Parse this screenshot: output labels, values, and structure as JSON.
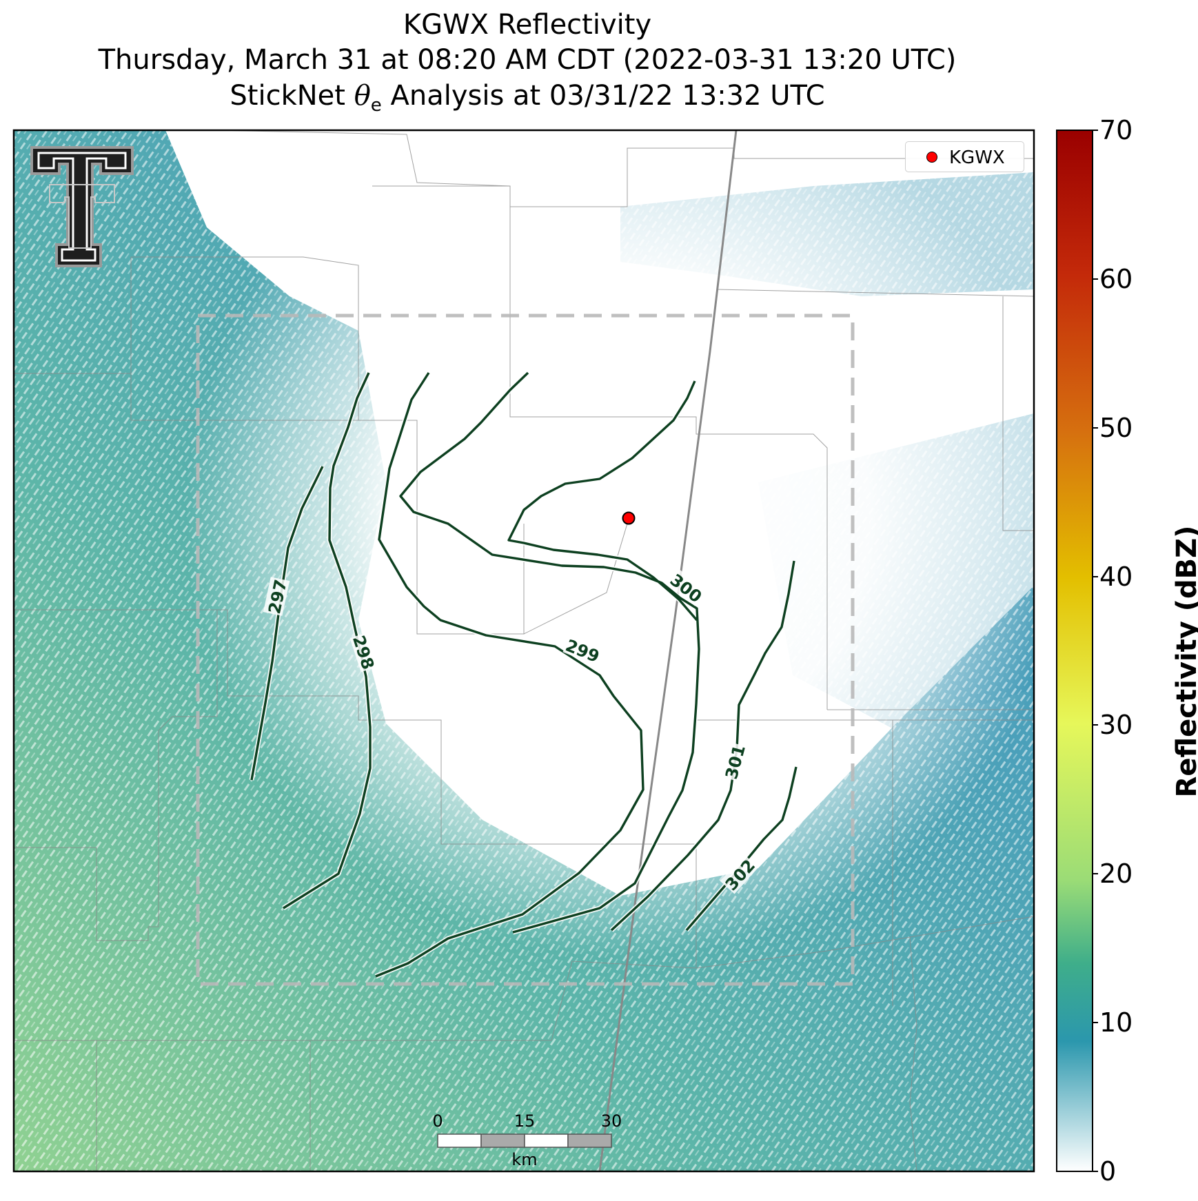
{
  "title": {
    "line1": "KGWX Reflectivity",
    "line2": "Thursday, March 31 at 08:20 AM CDT (2022-03-31 13:20 UTC)",
    "line3_prefix": "StickNet ",
    "line3_symbol": "θ",
    "line3_subscript": "e",
    "line3_suffix": " Analysis at 03/31/22 13:32 UTC"
  },
  "legend": {
    "marker_label": "KGWX",
    "marker_color": "#ff0000"
  },
  "scalebar": {
    "ticks": [
      "0",
      "15",
      "30"
    ],
    "unit": "km"
  },
  "colorbar": {
    "label": "Reflectivity (dBZ)",
    "ticks": [
      "0",
      "10",
      "20",
      "30",
      "40",
      "50",
      "60",
      "70"
    ],
    "stops": [
      "#ffffff",
      "#2b97ad",
      "#3fae8a",
      "#9bdc76",
      "#e6f75a",
      "#e3bf00",
      "#d6700f",
      "#c42a0a",
      "#9a0000"
    ]
  },
  "contours": {
    "color": "#0d4020",
    "labels": [
      "297",
      "298",
      "299",
      "300",
      "301",
      "302"
    ]
  },
  "logo": {
    "name": "texas-tech-double-t"
  }
}
